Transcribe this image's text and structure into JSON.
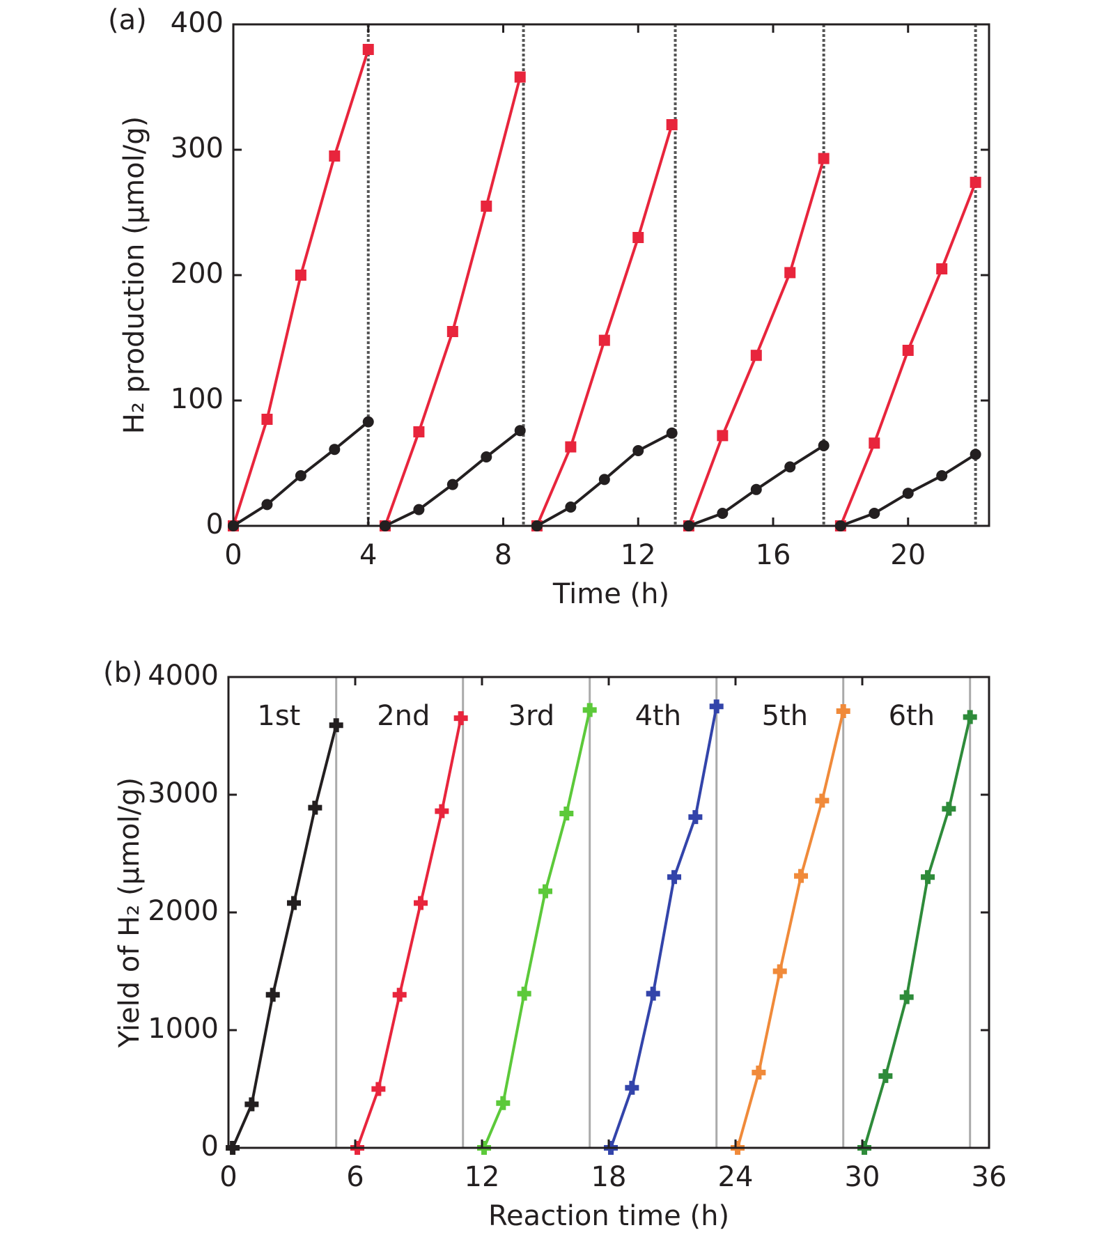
{
  "chart_data": [
    {
      "type": "line",
      "label": "(a)",
      "xlabel": "Time (h)",
      "ylabel": "H₂ production (μmol/g)",
      "xlim": [
        0,
        22.4
      ],
      "ylim": [
        0,
        400
      ],
      "xticks": [
        0,
        4,
        8,
        12,
        16,
        20
      ],
      "yticks": [
        0,
        100,
        200,
        300,
        400
      ],
      "vlines": [
        4,
        8.6,
        13.1,
        17.5,
        22
      ],
      "vline_style": "dashed",
      "series": [
        {
          "color": "#e8253c",
          "marker": "square",
          "x": [
            0,
            1,
            2,
            3,
            4
          ],
          "values": [
            0,
            85,
            200,
            295,
            380
          ]
        },
        {
          "color": "#e8253c",
          "marker": "square",
          "x": [
            4.5,
            5.5,
            6.5,
            7.5,
            8.5
          ],
          "values": [
            0,
            75,
            155,
            255,
            358
          ]
        },
        {
          "color": "#e8253c",
          "marker": "square",
          "x": [
            9,
            10,
            11,
            12,
            13
          ],
          "values": [
            0,
            63,
            148,
            230,
            320
          ]
        },
        {
          "color": "#e8253c",
          "marker": "square",
          "x": [
            13.5,
            14.5,
            15.5,
            16.5,
            17.5
          ],
          "values": [
            0,
            72,
            136,
            202,
            293
          ]
        },
        {
          "color": "#e8253c",
          "marker": "square",
          "x": [
            18,
            19,
            20,
            21,
            22
          ],
          "values": [
            0,
            66,
            140,
            205,
            274
          ]
        },
        {
          "color": "#231f20",
          "marker": "circle",
          "x": [
            0,
            1,
            2,
            3,
            4
          ],
          "values": [
            0,
            17,
            40,
            61,
            83
          ]
        },
        {
          "color": "#231f20",
          "marker": "circle",
          "x": [
            4.5,
            5.5,
            6.5,
            7.5,
            8.5
          ],
          "values": [
            0,
            13,
            33,
            55,
            76
          ]
        },
        {
          "color": "#231f20",
          "marker": "circle",
          "x": [
            9,
            10,
            11,
            12,
            13
          ],
          "values": [
            0,
            15,
            37,
            60,
            74
          ]
        },
        {
          "color": "#231f20",
          "marker": "circle",
          "x": [
            13.5,
            14.5,
            15.5,
            16.5,
            17.5
          ],
          "values": [
            0,
            10,
            29,
            47,
            64
          ]
        },
        {
          "color": "#231f20",
          "marker": "circle",
          "x": [
            18,
            19,
            20,
            21,
            22
          ],
          "values": [
            0,
            10,
            26,
            40,
            57
          ]
        }
      ]
    },
    {
      "type": "line",
      "label": "(b)",
      "xlabel": "Reaction time (h)",
      "ylabel": "Yield of H₂ (μmol/g)",
      "xlim": [
        0,
        36
      ],
      "ylim": [
        0,
        4000
      ],
      "xticks": [
        0,
        6,
        12,
        18,
        24,
        30,
        36
      ],
      "yticks": [
        0,
        1000,
        2000,
        3000,
        4000
      ],
      "vlines": [
        5.1,
        11.1,
        17.1,
        23.1,
        29.1,
        35.1
      ],
      "vline_style": "solid",
      "series": [
        {
          "name": "1st",
          "color": "#231f20",
          "marker": "plus",
          "x": [
            0.2,
            1.1,
            2.1,
            3.1,
            4.1,
            5.1
          ],
          "values": [
            0,
            370,
            1300,
            2080,
            2890,
            3590
          ]
        },
        {
          "name": "2nd",
          "color": "#e8253c",
          "marker": "plus",
          "x": [
            6.1,
            7.1,
            8.1,
            9.1,
            10.1,
            11
          ],
          "values": [
            0,
            500,
            1300,
            2080,
            2860,
            3650
          ]
        },
        {
          "name": "3rd",
          "color": "#5cc93a",
          "marker": "plus",
          "x": [
            12.1,
            13,
            14,
            15,
            16,
            17.1
          ],
          "values": [
            0,
            380,
            1310,
            2180,
            2840,
            3720
          ]
        },
        {
          "name": "4th",
          "color": "#3344aa",
          "marker": "plus",
          "x": [
            18.1,
            19.1,
            20.1,
            21.1,
            22.1,
            23.1
          ],
          "values": [
            0,
            510,
            1310,
            2300,
            2810,
            3750
          ]
        },
        {
          "name": "5th",
          "color": "#f08a3a",
          "marker": "plus",
          "x": [
            24.1,
            25.1,
            26.1,
            27.1,
            28.1,
            29.1
          ],
          "values": [
            0,
            640,
            1500,
            2310,
            2950,
            3710
          ]
        },
        {
          "name": "6th",
          "color": "#2e8b3a",
          "marker": "plus",
          "x": [
            30.1,
            31.1,
            32.1,
            33.1,
            34.1,
            35.1
          ],
          "values": [
            0,
            610,
            1280,
            2300,
            2880,
            3660
          ]
        }
      ]
    }
  ]
}
